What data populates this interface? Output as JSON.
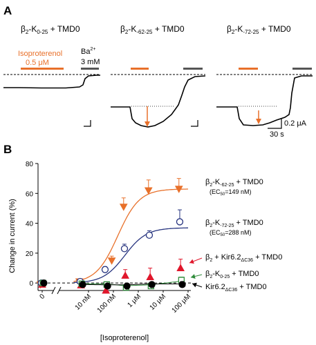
{
  "panel_a": {
    "label": "A",
    "construct_titles": [
      {
        "base": "β",
        "sub": "2",
        "mid": "-K",
        "sub2": "0-25",
        "tail": " + TMD0"
      },
      {
        "base": "β",
        "sub": "2",
        "mid": "-K",
        "sub2": "-62-25",
        "tail": " + TMD0"
      },
      {
        "base": "β",
        "sub": "2",
        "mid": "-K",
        "sub2": "-72-25",
        "tail": " + TMD0"
      }
    ],
    "iso_label_line1": "Isoproterenol",
    "iso_label_line2": "0.5 μM",
    "ba_label_line1": "Ba",
    "ba_label_sup": "2+",
    "ba_label_line2": "3 mM",
    "scale_current": "0.2 μA",
    "scale_time": "30 s",
    "colors": {
      "iso": "#e8702a",
      "ba": "#555555"
    }
  },
  "panel_b": {
    "label": "B"
  },
  "chart_data": {
    "type": "scatter",
    "ylabel": "Change in current (%)",
    "xlabel": "[Isoproterenol]",
    "x_scale": "log",
    "x_ticks": [
      "0",
      "10 nM",
      "100 nM",
      "1 μM",
      "10 μM",
      "100 μM"
    ],
    "ylim": [
      -5,
      80
    ],
    "y_ticks": [
      0,
      20,
      40,
      60,
      80
    ],
    "series": [
      {
        "name_parts": {
          "base": "β",
          "sub": "2",
          "mid": "-K",
          "sub2": "-62-25",
          "tail": " + TMD0"
        },
        "annotation": {
          "pre": "(EC",
          "sub": "50",
          "post": "=149 nM)"
        },
        "color": "#e8702a",
        "marker": "triangle-down",
        "filled": true,
        "x": [
          "0",
          "5 nM",
          "100 nM",
          "300 nM",
          "3 μM",
          "50 μM"
        ],
        "values": [
          -1,
          1,
          15,
          51,
          62,
          63
        ],
        "errors": [
          1,
          1.5,
          3,
          6,
          7,
          7
        ],
        "fit": "sigmoid",
        "fit_top": 63,
        "fit_ec50": "149 nM"
      },
      {
        "name_parts": {
          "base": "β",
          "sub": "2",
          "mid": "-K",
          "sub2": "-72-25",
          "tail": " + TMD0"
        },
        "annotation": {
          "pre": "(EC",
          "sub": "50",
          "post": "=288 nM)"
        },
        "color": "#26337f",
        "marker": "circle",
        "filled": false,
        "x": [
          "0",
          "5 nM",
          "50 nM",
          "300 nM",
          "3 μM",
          "50 μM"
        ],
        "values": [
          0,
          1,
          9,
          23,
          32,
          41
        ],
        "errors": [
          1,
          1,
          2,
          3,
          3,
          8
        ],
        "fit": "sigmoid",
        "fit_top": 37,
        "fit_ec50": "288 nM"
      },
      {
        "name_parts": {
          "base": "β",
          "sub": "2",
          "mid": " + Kir6.2",
          "sub2": "ΔC36",
          "tail": " + TMD0"
        },
        "color": "#e0162b",
        "marker": "triangle-up",
        "filled": true,
        "x": [
          "0",
          "5 nM",
          "50 nM",
          "300 nM",
          "3 μM",
          "50 μM"
        ],
        "values": [
          -1,
          -1.5,
          -5,
          5,
          4,
          10
        ],
        "errors": [
          1,
          2,
          2,
          4,
          6,
          6
        ],
        "fit": "none"
      },
      {
        "name_parts": {
          "base": "β",
          "sub": "2",
          "mid": "-K",
          "sub2": "0-25",
          "tail": " + TMD0"
        },
        "color": "#2e8b3a",
        "marker": "square",
        "filled": false,
        "x": [
          "0",
          "5 nM",
          "50 nM",
          "300 nM",
          "3 μM",
          "50 μM"
        ],
        "values": [
          0,
          -0.5,
          -1,
          -3,
          -2,
          2
        ],
        "errors": [
          1,
          1,
          1.5,
          1.5,
          2,
          2
        ],
        "fit": "flat"
      },
      {
        "name_parts": {
          "base": "",
          "sub": "",
          "mid": "Kir6.2",
          "sub2": "ΔC36",
          "tail": " + TMD0"
        },
        "color": "#000000",
        "marker": "circle",
        "filled": true,
        "x": [
          "0",
          "5 nM",
          "50 nM",
          "300 nM",
          "3 μM",
          "50 μM"
        ],
        "values": [
          0,
          -1,
          -2,
          -2,
          -1,
          -1
        ],
        "errors": [
          1,
          1,
          1,
          1.5,
          1.5,
          2
        ],
        "fit": "flat"
      }
    ],
    "baseline": 0,
    "baseline_style": "dashed"
  }
}
